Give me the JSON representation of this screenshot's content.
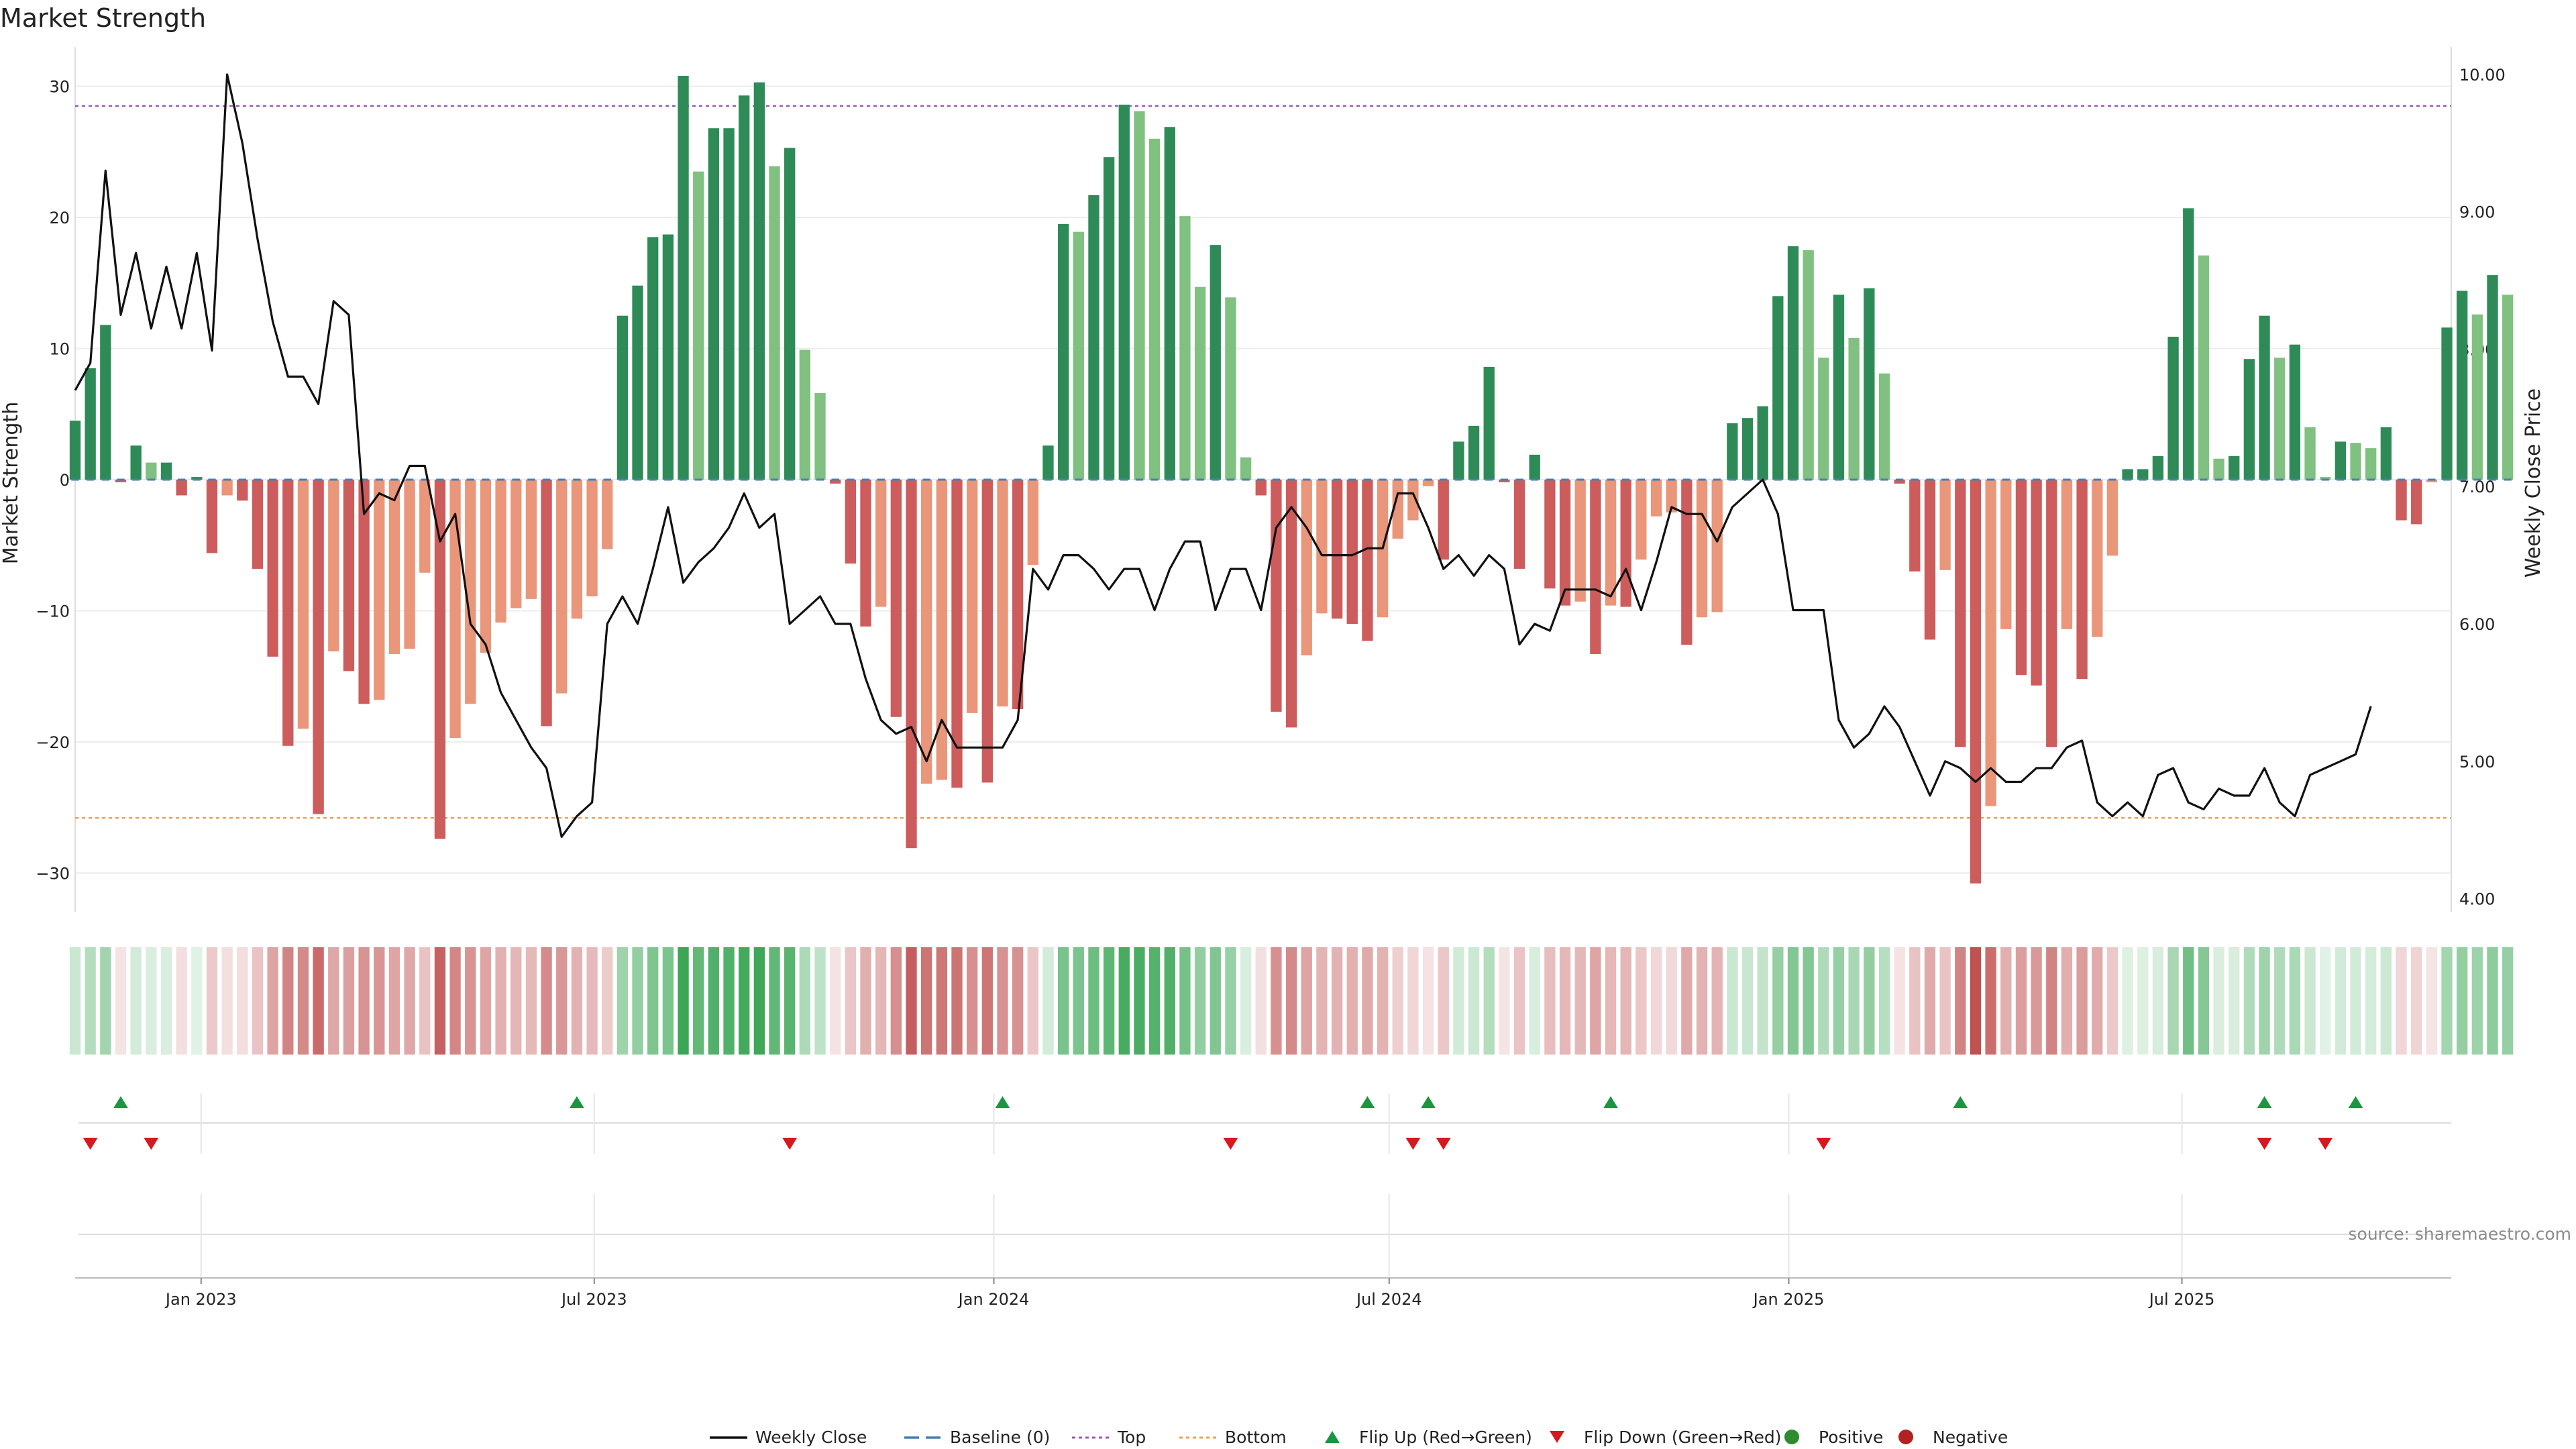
{
  "chart_data": {
    "type": "bar",
    "title": "Market Strength",
    "ylabel": "Market Strength",
    "y2label": "Weekly Close Price",
    "ylim": [
      -33,
      33
    ],
    "y2lim": [
      3.9,
      10.2
    ],
    "yticks": [
      30,
      20,
      10,
      0,
      -10,
      -20,
      -30
    ],
    "yticklabels": [
      "30",
      "20",
      "10",
      "0",
      "−10",
      "−20",
      "−30"
    ],
    "y2ticks": [
      10,
      9,
      8,
      7,
      6,
      5,
      4
    ],
    "y2ticklabels": [
      "10.00",
      "9.00",
      "8.00",
      "7.00",
      "6.00",
      "5.00",
      "4.00"
    ],
    "x_start": "2022-11-04",
    "x_end": "2025-11-02",
    "xticks": [
      {
        "date": "2023-01-01",
        "label": "Jan 2023"
      },
      {
        "date": "2023-07-01",
        "label": "Jul 2023"
      },
      {
        "date": "2024-01-01",
        "label": "Jan 2024"
      },
      {
        "date": "2024-07-01",
        "label": "Jul 2024"
      },
      {
        "date": "2025-01-01",
        "label": "Jan 2025"
      },
      {
        "date": "2025-07-01",
        "label": "Jul 2025"
      }
    ],
    "top_line": 28.5,
    "bottom_line": -25.8,
    "grid": true,
    "series": [
      {
        "name": "Market Strength",
        "start": "2022-11-04",
        "step_days": 7,
        "values": [
          4.5,
          8.5,
          11.8,
          -0.2,
          2.6,
          1.3,
          1.3,
          -1.2,
          0.2,
          -5.6,
          -1.2,
          -1.6,
          -6.8,
          -13.5,
          -20.3,
          -19,
          -25.5,
          -13.1,
          -14.6,
          -17.1,
          -16.8,
          -13.3,
          -12.9,
          -7.1,
          -27.4,
          -19.7,
          -17.1,
          -13.2,
          -10.9,
          -9.8,
          -9.1,
          -18.8,
          -16.3,
          -10.6,
          -8.9,
          -5.3,
          12.5,
          14.8,
          18.5,
          18.7,
          30.8,
          23.5,
          26.8,
          26.8,
          29.3,
          30.3,
          23.9,
          25.3,
          9.9,
          6.6,
          -0.3,
          -6.4,
          -11.2,
          -9.7,
          -18.1,
          -28.1,
          -23.2,
          -22.9,
          -23.5,
          -17.8,
          -23.1,
          -17.3,
          -17.5,
          -6.5,
          2.6,
          19.5,
          18.9,
          21.7,
          24.6,
          28.6,
          28.1,
          26,
          26.9,
          20.1,
          14.7,
          17.9,
          13.9,
          1.7,
          -1.2,
          -17.7,
          -18.9,
          -13.4,
          -10.2,
          -10.6,
          -11,
          -12.3,
          -10.5,
          -4.5,
          -3.1,
          -0.5,
          -6.1,
          2.9,
          4.1,
          8.6,
          -0.2,
          -6.8,
          1.9,
          -8.3,
          -9.6,
          -9.3,
          -13.3,
          -9.6,
          -9.7,
          -6.1,
          -2.8,
          -2.5,
          -12.6,
          -10.5,
          -10.1,
          4.3,
          4.7,
          5.6,
          14,
          17.8,
          17.5,
          9.3,
          14.1,
          10.8,
          14.6,
          8.1,
          -0.3,
          -7,
          -12.2,
          -6.9,
          -20.4,
          -30.8,
          -24.9,
          -11.4,
          -14.9,
          -15.7,
          -20.4,
          -11.4,
          -15.2,
          -12,
          -5.8,
          0.8,
          0.8,
          1.8,
          10.9,
          20.7,
          17.1,
          1.6,
          1.8,
          9.2,
          12.5,
          9.3,
          10.3,
          4,
          0.2,
          2.9,
          2.8,
          2.4,
          4,
          -3.1,
          -3.4,
          -0.2,
          11.6,
          14.4,
          12.6,
          15.6,
          14.1
        ]
      },
      {
        "name": "Weekly Close",
        "start": "2022-11-04",
        "step_days": 7,
        "values": [
          7.7,
          7.9,
          9.3,
          8.25,
          8.7,
          8.15,
          8.6,
          8.15,
          8.7,
          7.99,
          10.0,
          9.5,
          8.8,
          8.2,
          7.8,
          7.8,
          7.6,
          8.35,
          8.25,
          6.8,
          6.95,
          6.9,
          7.15,
          7.15,
          6.6,
          6.8,
          6.0,
          5.85,
          5.5,
          5.3,
          5.1,
          4.95,
          4.45,
          4.6,
          4.7,
          6.0,
          6.2,
          6.0,
          6.4,
          6.85,
          6.3,
          6.45,
          6.55,
          6.7,
          6.95,
          6.7,
          6.8,
          6.0,
          6.1,
          6.2,
          6.0,
          6.0,
          5.6,
          5.3,
          5.2,
          5.25,
          5.0,
          5.3,
          5.1,
          5.1,
          5.1,
          5.1,
          5.3,
          6.4,
          6.25,
          6.5,
          6.5,
          6.4,
          6.25,
          6.4,
          6.4,
          6.1,
          6.4,
          6.6,
          6.6,
          6.1,
          6.4,
          6.4,
          6.1,
          6.7,
          6.85,
          6.7,
          6.5,
          6.5,
          6.5,
          6.55,
          6.55,
          6.95,
          6.95,
          6.7,
          6.4,
          6.5,
          6.35,
          6.5,
          6.4,
          5.85,
          6.0,
          5.95,
          6.25,
          6.25,
          6.25,
          6.2,
          6.4,
          6.1,
          6.45,
          6.85,
          6.8,
          6.8,
          6.6,
          6.85,
          6.95,
          7.05,
          6.8,
          6.1,
          6.1,
          6.1,
          5.3,
          5.1,
          5.2,
          5.4,
          5.25,
          5.0,
          4.75,
          5.0,
          4.95,
          4.85,
          4.95,
          4.85,
          4.85,
          4.95,
          4.95,
          5.1,
          5.15,
          4.7,
          4.6,
          4.7,
          4.6,
          4.9,
          4.95,
          4.7,
          4.65,
          4.8,
          4.75,
          4.75,
          4.95,
          4.7,
          4.6,
          4.9,
          4.95,
          5.0,
          5.05,
          5.4
        ]
      }
    ],
    "flip_up_dates": [
      "2022-11-25",
      "2023-06-23",
      "2024-01-05",
      "2024-06-21",
      "2024-07-19",
      "2024-10-11",
      "2025-03-21",
      "2025-08-08",
      "2025-09-19"
    ],
    "flip_down_dates": [
      "2022-11-11",
      "2022-12-09",
      "2023-09-29",
      "2024-04-19",
      "2024-07-12",
      "2024-07-26",
      "2025-01-17",
      "2025-08-08",
      "2025-09-05"
    ],
    "legend": [
      {
        "label": "Weekly Close",
        "kind": "line"
      },
      {
        "label": "Baseline (0)",
        "kind": "dash"
      },
      {
        "label": "Top",
        "kind": "dotted-purple"
      },
      {
        "label": "Bottom",
        "kind": "dotted-orange"
      },
      {
        "label": "Flip Up (Red→Green)",
        "kind": "tri-up"
      },
      {
        "label": "Flip Down (Green→Red)",
        "kind": "tri-down"
      },
      {
        "label": "Positive",
        "kind": "dot-green"
      },
      {
        "label": "Negative",
        "kind": "dot-red"
      }
    ],
    "legend_placement": "bottom-center",
    "source": "source: sharemaestro.com"
  },
  "colors": {
    "pos_strong": "#2e8b57",
    "pos_weak": "#80c080",
    "neg_strong": "#cd5c5c",
    "neg_weak": "#e9967a",
    "price": "#111111",
    "baseline": "#4a7fb5",
    "top": "#9b59b6",
    "bottom": "#f0a050",
    "flip_up": "#1a9641",
    "flip_down": "#d7191c",
    "dot_pos": "#2e8b2e",
    "dot_neg": "#b22222"
  }
}
